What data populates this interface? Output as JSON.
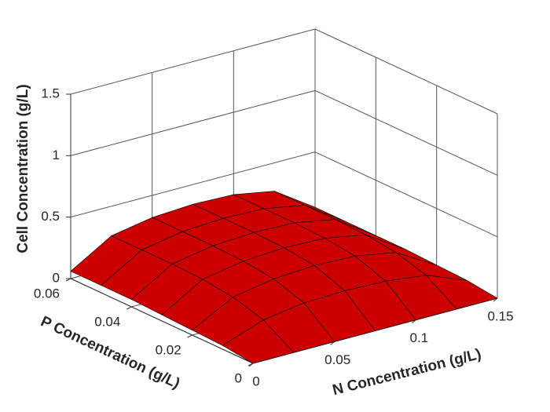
{
  "chart_data": {
    "type": "surface",
    "xlabel": "N Concentration (g/L)",
    "ylabel": "P Concentration (g/L)",
    "zlabel": "Cell Concentration (g/L)",
    "x": [
      0,
      0.025,
      0.05,
      0.075,
      0.1,
      0.125,
      0.15
    ],
    "y": [
      0,
      0.01,
      0.02,
      0.03,
      0.04,
      0.05,
      0.06
    ],
    "z": [
      [
        0,
        0,
        0,
        0,
        0,
        0,
        0
      ],
      [
        0.03,
        0.15,
        0.2,
        0.21,
        0.2,
        0.16,
        0.03
      ],
      [
        0.04,
        0.22,
        0.28,
        0.3,
        0.29,
        0.23,
        0.04
      ],
      [
        0.05,
        0.25,
        0.31,
        0.33,
        0.32,
        0.26,
        0.05
      ],
      [
        0.06,
        0.26,
        0.32,
        0.34,
        0.33,
        0.27,
        0.05
      ],
      [
        0.06,
        0.26,
        0.32,
        0.34,
        0.33,
        0.27,
        0.05
      ],
      [
        0.06,
        0.26,
        0.32,
        0.34,
        0.33,
        0.27,
        0.05
      ]
    ],
    "color": "#cc0000",
    "xlim": [
      0,
      0.15
    ],
    "xticks": [
      0,
      0.05,
      0.1,
      0.15
    ],
    "ylim": [
      0,
      0.06
    ],
    "yticks": [
      0,
      0.02,
      0.04,
      0.06
    ],
    "zlim": [
      0,
      1.5
    ],
    "zticks": [
      0,
      0.5,
      1,
      1.5
    ],
    "grid": true
  }
}
